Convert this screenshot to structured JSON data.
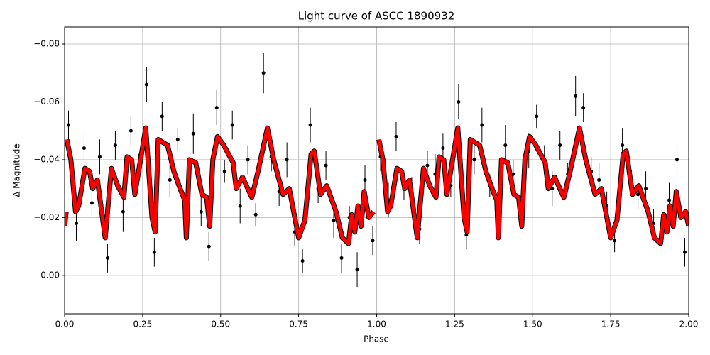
{
  "chart_data": {
    "type": "scatter",
    "title": "Light curve of ASCC 1890932",
    "x_label": "Phase",
    "y_label": "Δ Magnitude",
    "xlim": [
      0,
      2
    ],
    "ylim": [
      0.0133,
      -0.0859
    ],
    "xticks": [
      {
        "value": 0,
        "label": "0.00"
      },
      {
        "value": 0.25,
        "label": "0.25"
      },
      {
        "value": 0.5,
        "label": "0.50"
      },
      {
        "value": 0.75,
        "label": "0.75"
      },
      {
        "value": 1,
        "label": "1.00"
      },
      {
        "value": 1.25,
        "label": "1.25"
      },
      {
        "value": 1.5,
        "label": "1.50"
      },
      {
        "value": 1.75,
        "label": "1.75"
      },
      {
        "value": 2,
        "label": "2.00"
      }
    ],
    "yticks": [
      {
        "value": -0.08,
        "label": "−0.08"
      },
      {
        "value": -0.06,
        "label": "−0.06"
      },
      {
        "value": -0.04,
        "label": "−0.04"
      },
      {
        "value": -0.02,
        "label": "−0.02"
      },
      {
        "value": 0,
        "label": "0.00"
      }
    ],
    "grid": true,
    "points": {
      "color": "#000000",
      "x": [
        0.0125,
        0.0375,
        0.0625,
        0.0875,
        0.1125,
        0.1375,
        0.1625,
        0.1875,
        0.2125,
        0.2375,
        0.2625,
        0.2875,
        0.3125,
        0.3375,
        0.3625,
        0.3875,
        0.4125,
        0.4375,
        0.4625,
        0.4875,
        0.5125,
        0.5375,
        0.5625,
        0.5875,
        0.6125,
        0.6375,
        0.6625,
        0.6875,
        0.7125,
        0.7375,
        0.7625,
        0.7875,
        0.8125,
        0.8375,
        0.8625,
        0.8875,
        0.9125,
        0.9375,
        0.9625,
        0.9875,
        1.0125,
        1.0375,
        1.0625,
        1.0875,
        1.1125,
        1.1375,
        1.1625,
        1.1875,
        1.2125,
        1.2375,
        1.2625,
        1.2875,
        1.3125,
        1.3375,
        1.3625,
        1.3875,
        1.4125,
        1.4375,
        1.4625,
        1.4875,
        1.5125,
        1.5375,
        1.5625,
        1.5875,
        1.6125,
        1.6375,
        1.6625,
        1.6875,
        1.7125,
        1.7375,
        1.7625,
        1.7875,
        1.8125,
        1.8375,
        1.8625,
        1.8875,
        1.9125,
        1.9375,
        1.9625,
        1.9875
      ],
      "values": [
        -0.052,
        -0.018,
        -0.044,
        -0.025,
        -0.041,
        -0.006,
        -0.045,
        -0.022,
        -0.05,
        -0.038,
        -0.066,
        -0.008,
        -0.055,
        -0.033,
        -0.047,
        -0.019,
        -0.049,
        -0.022,
        -0.01,
        -0.058,
        -0.036,
        -0.052,
        -0.024,
        -0.04,
        -0.021,
        -0.07,
        -0.041,
        -0.029,
        -0.04,
        -0.015,
        -0.005,
        -0.052,
        -0.03,
        -0.038,
        -0.019,
        -0.006,
        -0.02,
        -0.002,
        -0.033,
        -0.012,
        -0.041,
        -0.026,
        -0.048,
        -0.03,
        -0.028,
        -0.016,
        -0.038,
        -0.035,
        -0.044,
        -0.031,
        -0.06,
        -0.014,
        -0.04,
        -0.052,
        -0.031,
        -0.024,
        -0.045,
        -0.035,
        -0.022,
        -0.043,
        -0.055,
        -0.04,
        -0.03,
        -0.045,
        -0.035,
        -0.062,
        -0.058,
        -0.036,
        -0.033,
        -0.024,
        -0.012,
        -0.045,
        -0.036,
        -0.028,
        -0.03,
        -0.018,
        -0.014,
        -0.026,
        -0.04,
        -0.008
      ],
      "errors": [
        0.005,
        0.006,
        0.005,
        0.004,
        0.006,
        0.005,
        0.005,
        0.007,
        0.005,
        0.004,
        0.006,
        0.005,
        0.005,
        0.006,
        0.004,
        0.005,
        0.007,
        0.005,
        0.005,
        0.006,
        0.004,
        0.005,
        0.006,
        0.005,
        0.004,
        0.007,
        0.005,
        0.005,
        0.006,
        0.005,
        0.004,
        0.006,
        0.005,
        0.005,
        0.006,
        0.005,
        0.004,
        0.006,
        0.005,
        0.005,
        0.005,
        0.006,
        0.005,
        0.004,
        0.006,
        0.005,
        0.005,
        0.007,
        0.005,
        0.004,
        0.006,
        0.005,
        0.005,
        0.006,
        0.004,
        0.005,
        0.007,
        0.005,
        0.005,
        0.006,
        0.004,
        0.005,
        0.006,
        0.005,
        0.004,
        0.007,
        0.005,
        0.005,
        0.006,
        0.005,
        0.004,
        0.006,
        0.005,
        0.005,
        0.006,
        0.005,
        0.004,
        0.006,
        0.005,
        0.005
      ]
    },
    "curve": {
      "color": "#ff0000",
      "x": [
        0,
        0.005,
        0.006,
        0.007,
        0.02,
        0.035,
        0.045,
        0.065,
        0.08,
        0.09,
        0.105,
        0.13,
        0.15,
        0.17,
        0.19,
        0.2,
        0.215,
        0.225,
        0.26,
        0.28,
        0.29,
        0.3,
        0.33,
        0.35,
        0.37,
        0.385,
        0.39,
        0.4,
        0.42,
        0.44,
        0.455,
        0.465,
        0.475,
        0.49,
        0.51,
        0.54,
        0.55,
        0.57,
        0.6,
        0.62,
        0.65,
        0.67,
        0.7,
        0.72,
        0.75,
        0.77,
        0.79,
        0.8,
        0.82,
        0.84,
        0.87,
        0.89,
        0.91,
        0.92,
        0.93,
        0.94,
        0.95,
        0.96,
        0.975,
        0.99,
        1.0,
        1.007,
        1.02,
        1.035,
        1.045,
        1.065,
        1.08,
        1.09,
        1.105,
        1.13,
        1.15,
        1.17,
        1.19,
        1.2,
        1.215,
        1.225,
        1.26,
        1.28,
        1.29,
        1.3,
        1.33,
        1.35,
        1.37,
        1.385,
        1.39,
        1.4,
        1.42,
        1.44,
        1.455,
        1.465,
        1.475,
        1.49,
        1.51,
        1.54,
        1.55,
        1.57,
        1.6,
        1.62,
        1.65,
        1.67,
        1.7,
        1.72,
        1.75,
        1.77,
        1.79,
        1.8,
        1.82,
        1.84,
        1.87,
        1.89,
        1.91,
        1.92,
        1.93,
        1.94,
        1.95,
        1.96,
        1.975,
        1.99,
        2.0
      ],
      "values": [
        -0.017,
        -0.022,
        null,
        -0.047,
        -0.04,
        -0.022,
        -0.024,
        -0.037,
        -0.036,
        -0.03,
        -0.033,
        -0.013,
        -0.037,
        -0.031,
        -0.027,
        -0.041,
        -0.04,
        -0.028,
        -0.051,
        -0.02,
        -0.015,
        -0.047,
        -0.045,
        -0.036,
        -0.03,
        -0.026,
        -0.013,
        -0.04,
        -0.039,
        -0.028,
        -0.027,
        -0.017,
        -0.04,
        -0.048,
        -0.045,
        -0.039,
        -0.03,
        -0.034,
        -0.027,
        -0.036,
        -0.051,
        -0.04,
        -0.028,
        -0.03,
        -0.013,
        -0.019,
        -0.042,
        -0.043,
        -0.028,
        -0.031,
        -0.022,
        -0.013,
        -0.011,
        -0.021,
        -0.015,
        -0.024,
        -0.017,
        -0.029,
        -0.02,
        -0.022,
        null,
        -0.047,
        -0.04,
        -0.022,
        -0.024,
        -0.037,
        -0.036,
        -0.03,
        -0.033,
        -0.013,
        -0.037,
        -0.031,
        -0.027,
        -0.041,
        -0.04,
        -0.028,
        -0.051,
        -0.02,
        -0.015,
        -0.047,
        -0.045,
        -0.036,
        -0.03,
        -0.026,
        -0.013,
        -0.04,
        -0.039,
        -0.028,
        -0.027,
        -0.017,
        -0.04,
        -0.048,
        -0.045,
        -0.039,
        -0.03,
        -0.034,
        -0.027,
        -0.036,
        -0.051,
        -0.04,
        -0.028,
        -0.03,
        -0.013,
        -0.019,
        -0.042,
        -0.043,
        -0.028,
        -0.031,
        -0.022,
        -0.013,
        -0.011,
        -0.021,
        -0.015,
        -0.024,
        -0.017,
        -0.029,
        -0.02,
        -0.022,
        -0.017
      ]
    }
  }
}
